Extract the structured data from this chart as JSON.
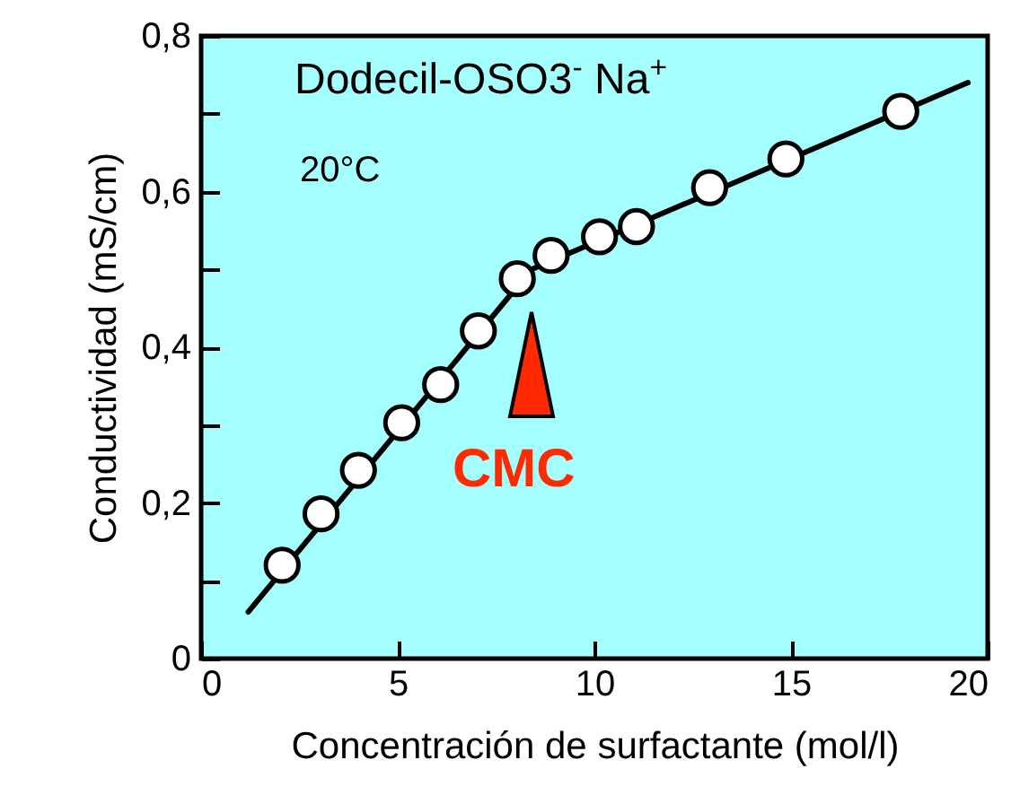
{
  "chart_data": {
    "type": "scatter",
    "xlabel": "Concentración de surfactante (mol/l)",
    "ylabel": "Conductividad (mS/cm)",
    "x": [
      2.06,
      3.05,
      4.0,
      5.1,
      6.09,
      7.05,
      8.04,
      8.9,
      10.13,
      11.07,
      12.93,
      14.87,
      17.79
    ],
    "series": [
      {
        "color": "#ffffff",
        "marker": "circle",
        "values": [
          0.12,
          0.186,
          0.242,
          0.303,
          0.352,
          0.421,
          0.488,
          0.518,
          0.542,
          0.555,
          0.605,
          0.642,
          0.703
        ]
      },
      {
        "type": "line",
        "color": "#000000",
        "x": [
          1.2,
          8.4,
          19.5
        ],
        "values": [
          0.06,
          0.5,
          0.74
        ]
      }
    ],
    "xlim": [
      0,
      20
    ],
    "xticks": [
      0,
      5,
      10,
      15,
      20
    ],
    "ylim": [
      0,
      0.8
    ],
    "yticks": [
      {
        "value": 0,
        "label": "0"
      },
      {
        "value": 0.1,
        "label": null
      },
      {
        "value": 0.2,
        "label": "0,2"
      },
      {
        "value": 0.3,
        "label": null
      },
      {
        "value": 0.4,
        "label": "0,4"
      },
      {
        "value": 0.5,
        "label": null
      },
      {
        "value": 0.6,
        "label": "0,6"
      },
      {
        "value": 0.7,
        "label": null
      },
      {
        "value": 0.8,
        "label": "0,8"
      }
    ],
    "annotations": [
      "Dodecil-OSO3$^{-}$  Na$^{+}$",
      "20°C",
      "CMC"
    ]
  }
}
